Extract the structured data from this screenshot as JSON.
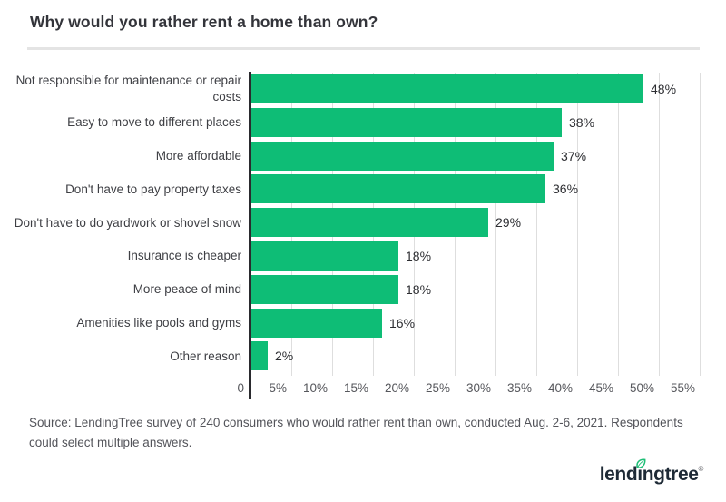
{
  "title": "Why would you rather rent a home than own?",
  "chart_data": {
    "type": "bar",
    "orientation": "horizontal",
    "title": "Why would you rather rent a home than own?",
    "categories": [
      "Not responsible for maintenance or repair costs",
      "Easy to move to different places",
      "More affordable",
      "Don't have to pay property taxes",
      "Don't have to do yardwork or shovel snow",
      "Insurance is cheaper",
      "More peace of mind",
      "Amenities like pools and gyms",
      "Other reason"
    ],
    "values": [
      48,
      38,
      37,
      36,
      29,
      18,
      18,
      16,
      2
    ],
    "value_labels": [
      "48%",
      "38%",
      "37%",
      "36%",
      "29%",
      "18%",
      "18%",
      "16%",
      "2%"
    ],
    "xlabel": "",
    "ylabel": "",
    "xlim": [
      0,
      55
    ],
    "x_ticks": [
      "0",
      "5%",
      "10%",
      "15%",
      "20%",
      "25%",
      "30%",
      "35%",
      "40%",
      "45%",
      "50%",
      "55%"
    ],
    "x_tick_values": [
      0,
      5,
      10,
      15,
      20,
      25,
      30,
      35,
      40,
      45,
      50,
      55
    ],
    "grid": true,
    "legend": false,
    "bar_color": "#0ebd76"
  },
  "source": "Source: LendingTree survey of 240 consumers who would rather rent than own, conducted Aug. 2-6, 2021. Respondents could select multiple answers.",
  "logo": {
    "brand_pre": "lend",
    "brand_i": "ı",
    "brand_post": "ngtree",
    "registered": "®",
    "leaf_icon": "leaf-icon",
    "text_color": "#1e2a36",
    "leaf_color": "#1fbe77"
  },
  "colors": {
    "bar": "#0ebd76",
    "axis_line": "#2a2a2e",
    "gridline": "#dedede",
    "divider": "#e4e4e4",
    "title_text": "#33343a",
    "category_text": "#3e3f44",
    "tick_text": "#56575c",
    "value_text": "#2c2d31",
    "source_text": "#53545a"
  }
}
